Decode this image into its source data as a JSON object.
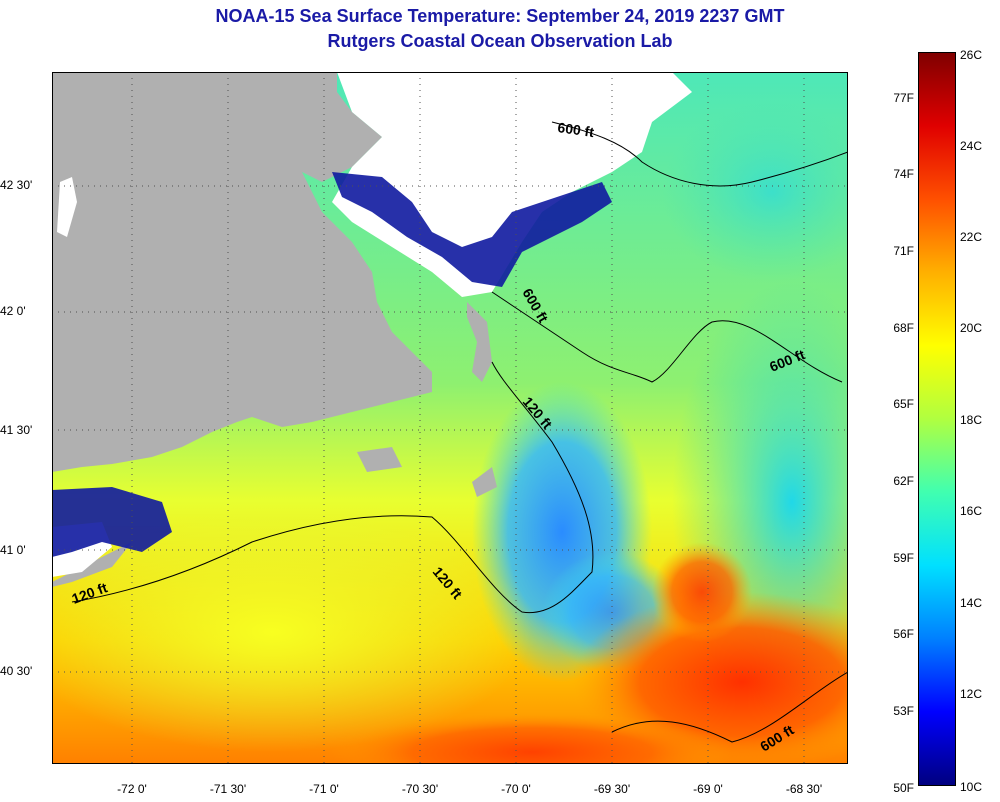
{
  "title": "NOAA-15 Sea Surface Temperature:  September 24, 2019 2237 GMT",
  "subtitle": "Rutgers Coastal Ocean Observation Lab",
  "axes": {
    "lat_labels": [
      "42 30'",
      "42 0'",
      "41 30'",
      "41 0'",
      "40 30'"
    ],
    "lon_labels": [
      "-72 0'",
      "-71 30'",
      "-71 0'",
      "-70 30'",
      "-70 0'",
      "-69 30'",
      "-69 0'",
      "-68 30'"
    ]
  },
  "colorbar": {
    "fahrenheit_labels": [
      "77F",
      "74F",
      "71F",
      "68F",
      "65F",
      "62F",
      "59F",
      "56F",
      "53F",
      "50F"
    ],
    "celsius_labels": [
      "26C",
      "24C",
      "22C",
      "20C",
      "18C",
      "16C",
      "14C",
      "12C",
      "10C"
    ],
    "range_c": [
      10,
      26
    ],
    "stops": [
      "#000080",
      "#0000ff",
      "#0080ff",
      "#00e0ff",
      "#40ffb0",
      "#b0ff40",
      "#ffff00",
      "#ffb000",
      "#ff5000",
      "#e00000",
      "#800000"
    ]
  },
  "depth_contours": [
    "600 ft",
    "600 ft",
    "600 ft",
    "600 ft",
    "120 ft",
    "120 ft",
    "120 ft"
  ],
  "colors": {
    "land": "#b0b0b0",
    "cloud": "#ffffff",
    "title": "#1a1aa6"
  }
}
